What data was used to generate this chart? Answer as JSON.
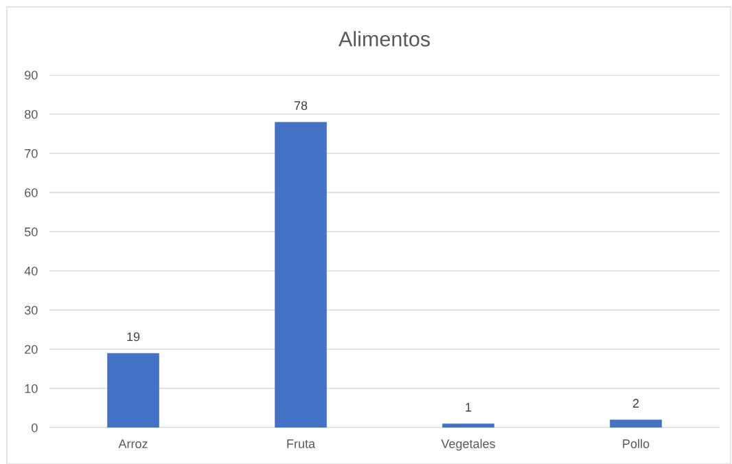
{
  "chart_data": {
    "type": "bar",
    "title": "Alimentos",
    "categories": [
      "Arroz",
      "Fruta",
      "Vegetales",
      "Pollo"
    ],
    "values": [
      19,
      78,
      1,
      2
    ],
    "color": "#4472c4",
    "ylim": [
      0,
      90
    ],
    "yticks": [
      0,
      10,
      20,
      30,
      40,
      50,
      60,
      70,
      80,
      90
    ],
    "grid": "y",
    "data_labels": true
  }
}
